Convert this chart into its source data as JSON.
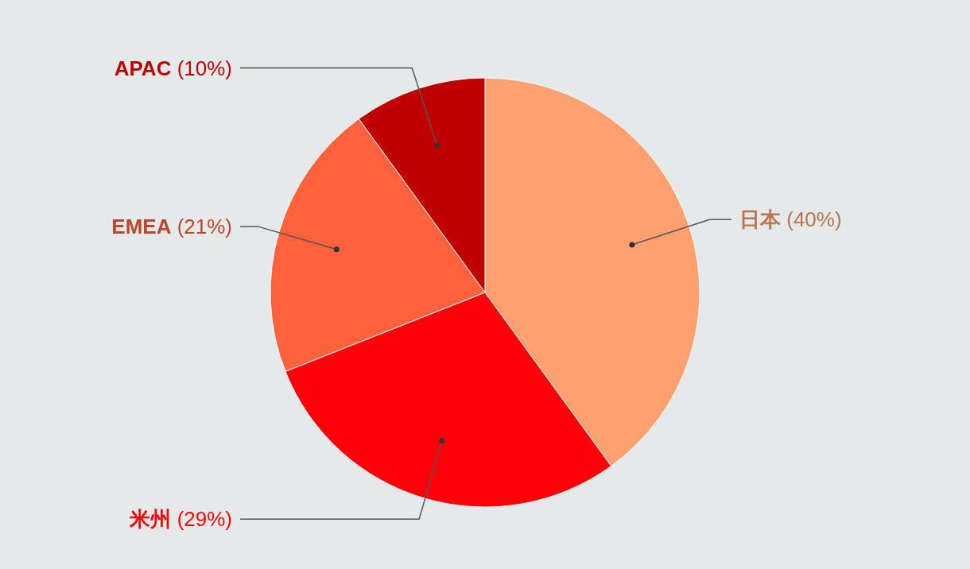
{
  "chart_data": {
    "type": "pie",
    "categories": [
      "日本",
      "米州",
      "EMEA",
      "APAC"
    ],
    "values": [
      40,
      29,
      21,
      10
    ],
    "value_labels": [
      "(40%)",
      "(29%)",
      "(21%)",
      "(10%)"
    ],
    "colors": [
      "#ffa070",
      "#ff0008",
      "#ff623c",
      "#bf0000"
    ]
  }
}
